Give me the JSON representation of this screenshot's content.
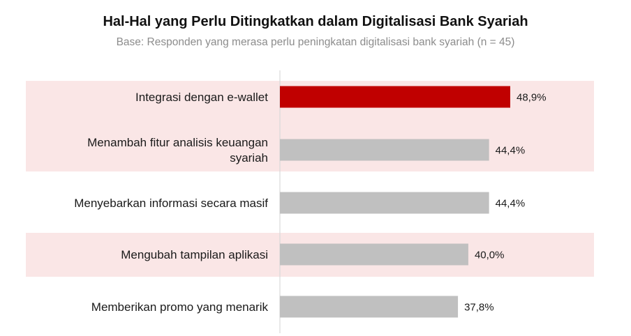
{
  "chart_data": {
    "type": "bar",
    "orientation": "horizontal",
    "title": "Hal-Hal yang Perlu Ditingkatkan dalam Digitalisasi Bank Syariah",
    "subtitle": "Base: Responden yang merasa perlu peningkatan digitalisasi bank syariah (n = 45)",
    "categories": [
      [
        "Integrasi dengan e-wallet"
      ],
      [
        "Menambah fitur analisis keuangan",
        "syariah"
      ],
      [
        "Menyebarkan informasi secara masif"
      ],
      [
        "Mengubah tampilan aplikasi"
      ],
      [
        "Memberikan promo yang menarik"
      ]
    ],
    "values": [
      48.9,
      44.4,
      44.4,
      40.0,
      37.8
    ],
    "value_labels": [
      "48,9%",
      "44,4%",
      "44,4%",
      "40,0%",
      "37,8%"
    ],
    "highlighted_rows": [
      0,
      1,
      3
    ],
    "xlim": [
      0,
      55
    ],
    "grid": false,
    "colors": {
      "highlight_bar": "#c00000",
      "bar": "#c0c0c0",
      "row_band": "#fae6e6",
      "axis_line": "#d9d9d9"
    }
  }
}
